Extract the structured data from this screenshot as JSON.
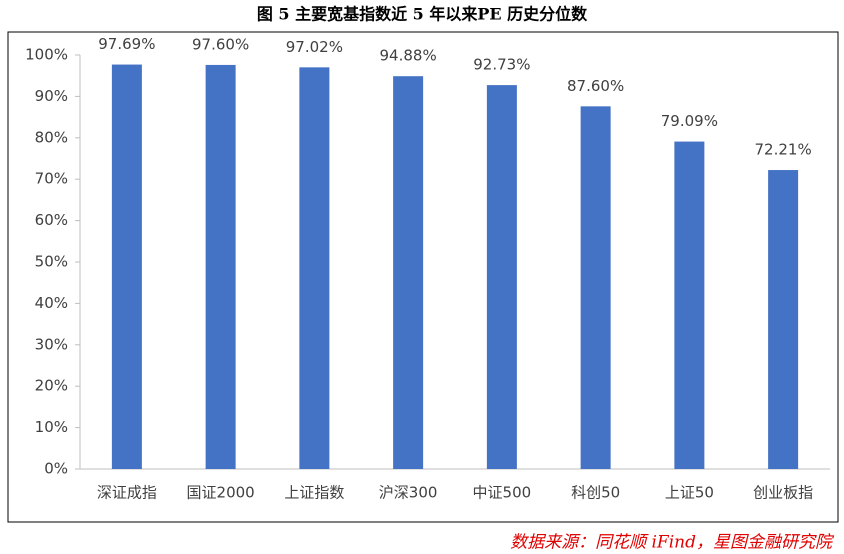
{
  "chart_data": {
    "type": "bar",
    "title": "图 5 主要宽基指数近 5 年以来PE 历史分位数",
    "categories": [
      "深证成指",
      "国证2000",
      "上证指数",
      "沪深300",
      "中证500",
      "科创50",
      "上证50",
      "创业板指"
    ],
    "values": [
      97.69,
      97.6,
      97.02,
      94.88,
      92.73,
      87.6,
      79.09,
      72.21
    ],
    "value_labels": [
      "97.69%",
      "97.60%",
      "97.02%",
      "94.88%",
      "92.73%",
      "87.60%",
      "79.09%",
      "72.21%"
    ],
    "color": "#4472c4",
    "ylim": [
      0,
      100
    ],
    "yticks": [
      {
        "value": 0,
        "label": "0%"
      },
      {
        "value": 10,
        "label": "10%"
      },
      {
        "value": 20,
        "label": "20%"
      },
      {
        "value": 30,
        "label": "30%"
      },
      {
        "value": 40,
        "label": "40%"
      },
      {
        "value": 50,
        "label": "50%"
      },
      {
        "value": 60,
        "label": "60%"
      },
      {
        "value": 70,
        "label": "70%"
      },
      {
        "value": 80,
        "label": "80%"
      },
      {
        "value": 90,
        "label": "90%"
      },
      {
        "value": 100,
        "label": "100%"
      }
    ],
    "grid": false,
    "source": "数据来源：同花顺 iFind，星图金融研究院"
  }
}
